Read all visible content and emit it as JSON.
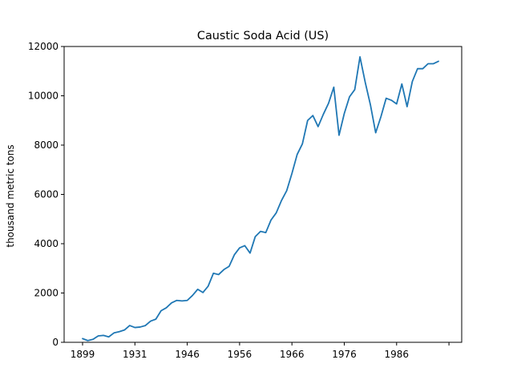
{
  "chart_data": {
    "type": "line",
    "title": "Caustic Soda Acid (US)",
    "xlabel": "",
    "ylabel": "thousand metric tons",
    "ylim": [
      0,
      12000
    ],
    "yticks": [
      0,
      2000,
      4000,
      6000,
      8000,
      10000,
      12000
    ],
    "xtick_indices": [
      0,
      10,
      20,
      30,
      40,
      50,
      60,
      70
    ],
    "xtick_labels": [
      "1899",
      "1931",
      "1946",
      "1956",
      "1966",
      "1976",
      "1986",
      ""
    ],
    "grid": false,
    "series": [
      {
        "name": "Caustic Soda Acid (US)",
        "color": "#1f77b4",
        "values": [
          150,
          70,
          120,
          260,
          280,
          220,
          380,
          430,
          500,
          680,
          600,
          620,
          680,
          860,
          940,
          1280,
          1400,
          1600,
          1700,
          1680,
          1700,
          1900,
          2150,
          2020,
          2280,
          2800,
          2750,
          2950,
          3080,
          3550,
          3830,
          3920,
          3620,
          4290,
          4500,
          4450,
          4960,
          5250,
          5750,
          6150,
          6850,
          7620,
          8050,
          9000,
          9200,
          8750,
          9250,
          9700,
          10350,
          8400,
          9280,
          9960,
          10250,
          11580,
          10550,
          9630,
          8500,
          9150,
          9900,
          9820,
          9670,
          10480,
          9560,
          10580,
          11100,
          11100,
          11300,
          11300,
          11400
        ]
      }
    ]
  }
}
